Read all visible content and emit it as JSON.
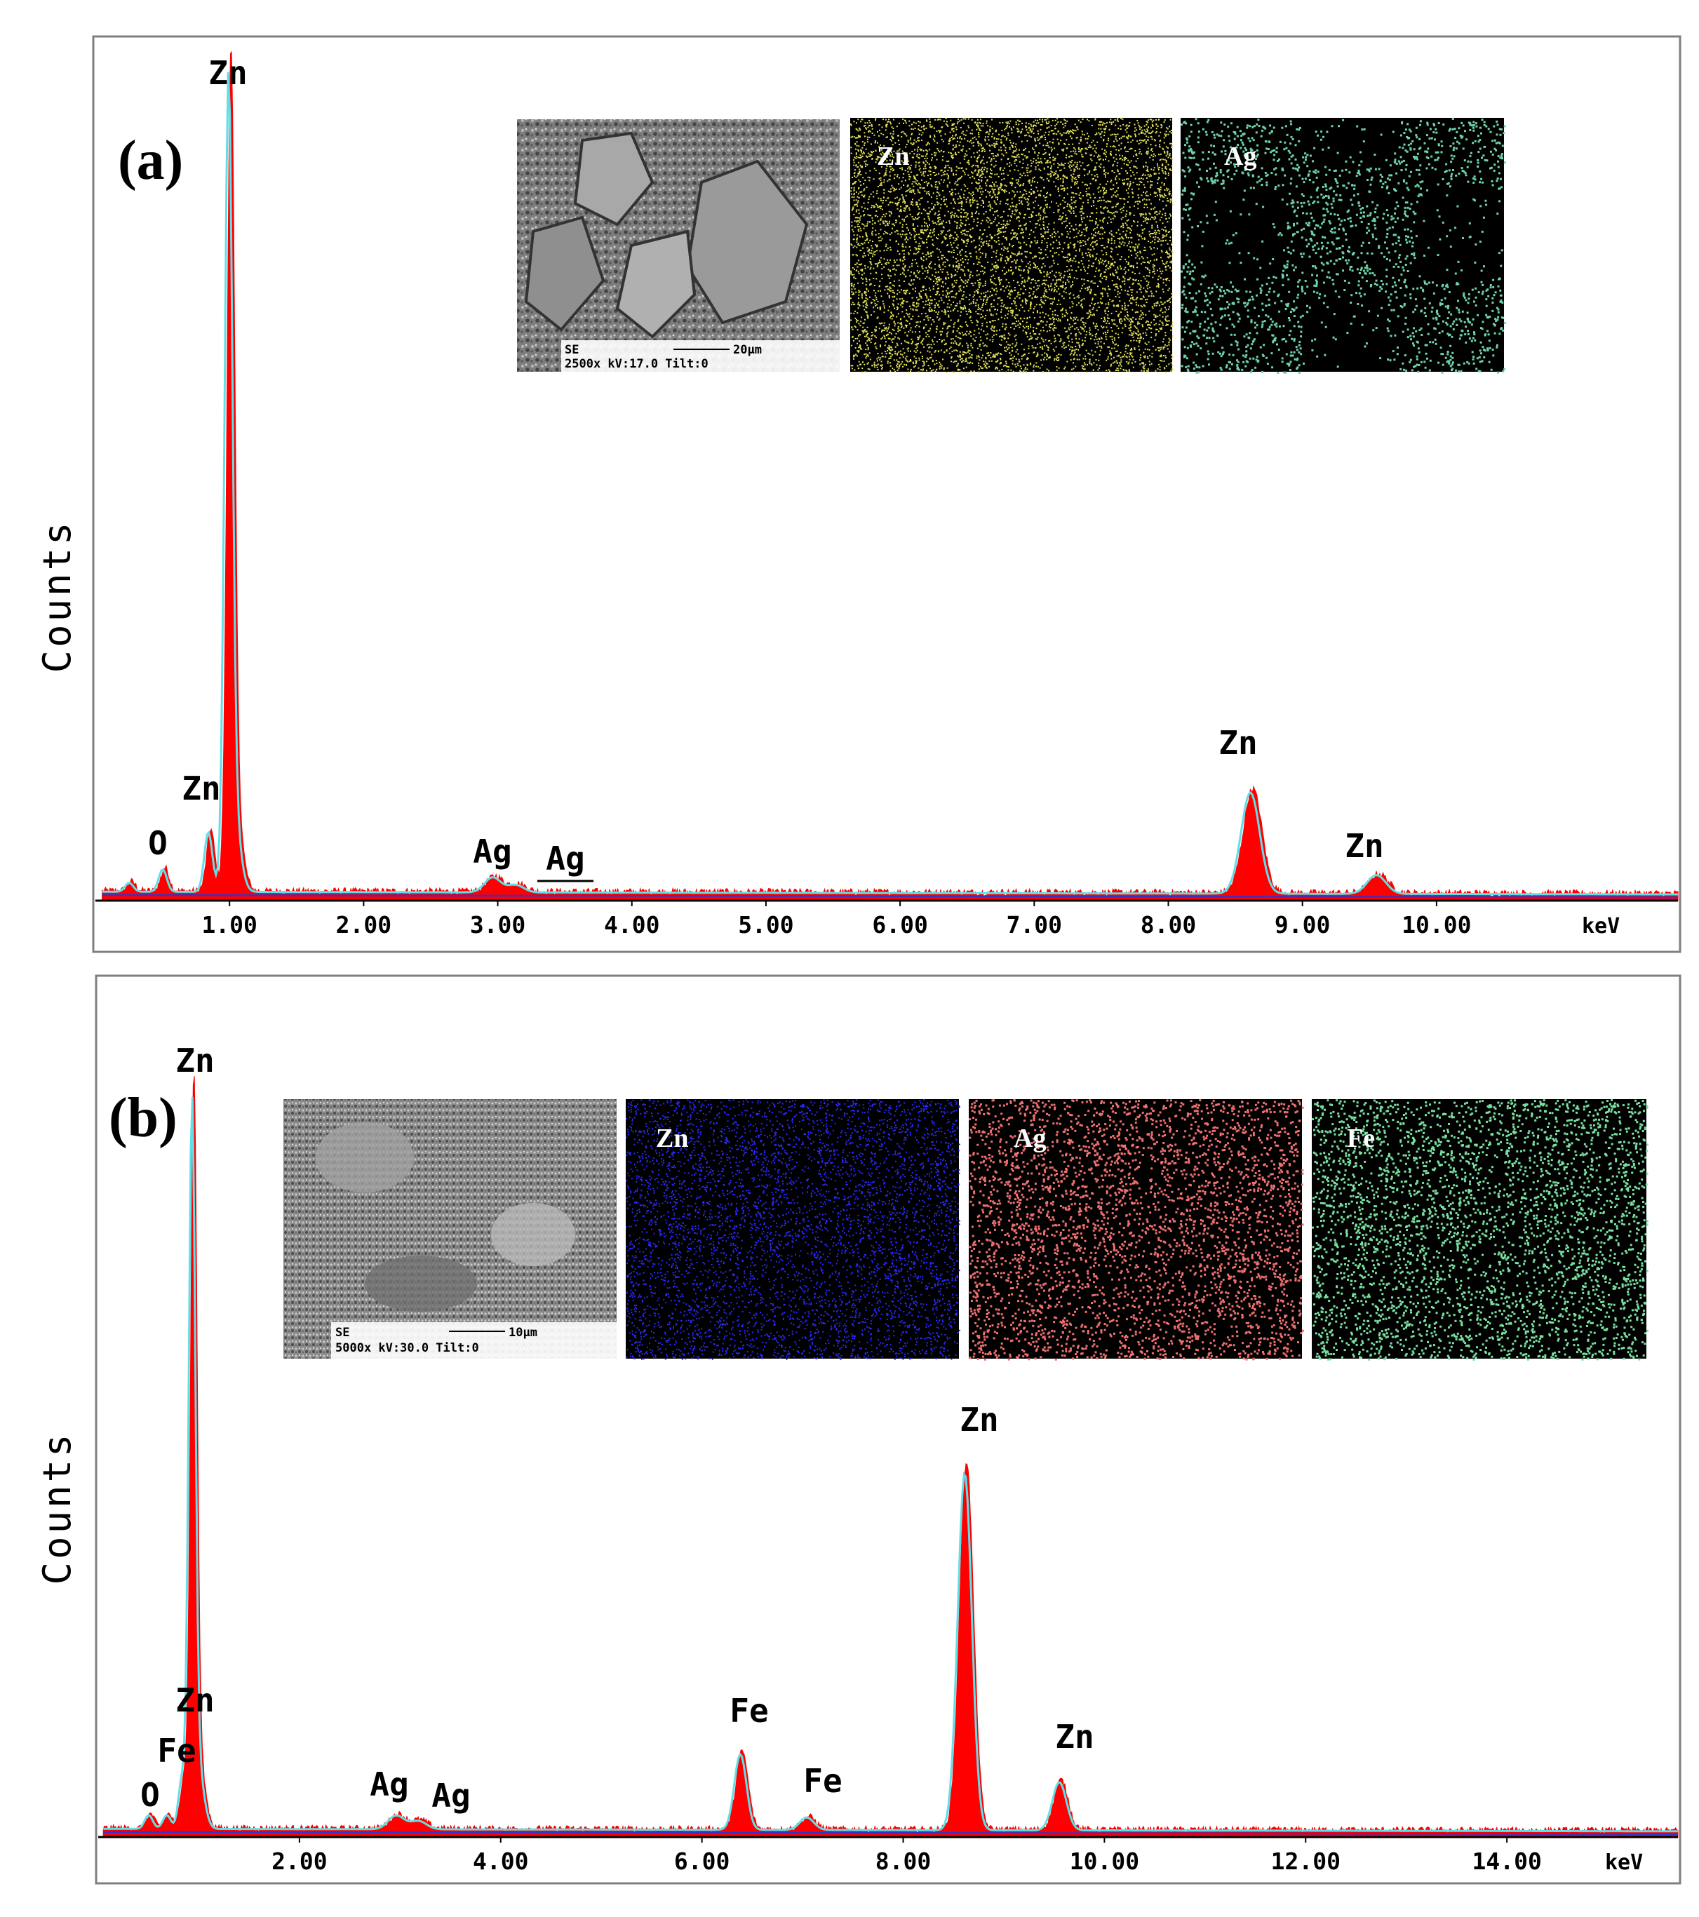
{
  "chart_data": [
    {
      "type": "area",
      "panel_label": "(a)",
      "ylabel": "Counts",
      "x_unit_label": "keV",
      "xlim": [
        0,
        11.8
      ],
      "x_tick_labels": [
        "1.00",
        "2.00",
        "3.00",
        "4.00",
        "5.00",
        "6.00",
        "7.00",
        "8.00",
        "9.00",
        "10.00"
      ],
      "x_ticks": [
        1,
        2,
        3,
        4,
        5,
        6,
        7,
        8,
        9,
        10
      ],
      "ylim": [
        0,
        1.06
      ],
      "baseline": 0.012,
      "spectrum_peaks": [
        {
          "energy": 0.27,
          "intensity": 0.012,
          "width": 0.03
        },
        {
          "energy": 0.52,
          "intensity": 0.03,
          "width": 0.03
        },
        {
          "energy": 0.86,
          "intensity": 0.08,
          "width": 0.03
        },
        {
          "energy": 1.01,
          "intensity": 1.0,
          "width": 0.028
        },
        {
          "energy": 1.04,
          "intensity": 0.12,
          "width": 0.05
        },
        {
          "energy": 2.98,
          "intensity": 0.02,
          "width": 0.06
        },
        {
          "energy": 3.15,
          "intensity": 0.01,
          "width": 0.06
        },
        {
          "energy": 8.63,
          "intensity": 0.135,
          "width": 0.07
        },
        {
          "energy": 9.57,
          "intensity": 0.025,
          "width": 0.07
        }
      ],
      "peak_labels": [
        {
          "text": "Zn",
          "energy": 1.01
        },
        {
          "text": "Zn",
          "energy": 0.88
        },
        {
          "text": "O",
          "energy": 0.52
        },
        {
          "text": "Ag",
          "energy": 3.0
        },
        {
          "text": "Ag",
          "energy": 3.55
        },
        {
          "text": "Zn",
          "energy": 8.65
        },
        {
          "text": "Zn",
          "energy": 9.57
        }
      ],
      "inset": {
        "sem_text_line1": "SE",
        "sem_scale": "20μm",
        "sem_text_line2": "2500x   kV:17.0  Tilt:0",
        "maps": [
          {
            "label": "Zn",
            "color": "#e3e15a"
          },
          {
            "label": "Ag",
            "color": "#6fd3a8"
          }
        ]
      }
    },
    {
      "type": "area",
      "panel_label": "(b)",
      "ylabel": "Counts",
      "x_unit_label": "keV",
      "xlim": [
        0,
        15.7
      ],
      "x_tick_labels": [
        "2.00",
        "4.00",
        "6.00",
        "8.00",
        "10.00",
        "12.00",
        "14.00"
      ],
      "x_ticks": [
        2,
        4,
        6,
        8,
        10,
        12,
        14
      ],
      "ylim": [
        0,
        1.06
      ],
      "baseline": 0.012,
      "spectrum_peaks": [
        {
          "energy": 0.52,
          "intensity": 0.02,
          "width": 0.04
        },
        {
          "energy": 0.7,
          "intensity": 0.02,
          "width": 0.04
        },
        {
          "energy": 0.85,
          "intensity": 0.07,
          "width": 0.035
        },
        {
          "energy": 0.95,
          "intensity": 1.0,
          "width": 0.032
        },
        {
          "energy": 1.0,
          "intensity": 0.1,
          "width": 0.06
        },
        {
          "energy": 2.98,
          "intensity": 0.02,
          "width": 0.08
        },
        {
          "energy": 3.2,
          "intensity": 0.012,
          "width": 0.08
        },
        {
          "energy": 6.4,
          "intensity": 0.11,
          "width": 0.06
        },
        {
          "energy": 7.06,
          "intensity": 0.018,
          "width": 0.07
        },
        {
          "energy": 8.63,
          "intensity": 0.52,
          "width": 0.07
        },
        {
          "energy": 9.57,
          "intensity": 0.07,
          "width": 0.07
        }
      ],
      "peak_labels": [
        {
          "text": "Zn",
          "energy": 0.95
        },
        {
          "text": "Zn",
          "energy": 0.92
        },
        {
          "text": "Fe",
          "energy": 0.7
        },
        {
          "text": "O",
          "energy": 0.5
        },
        {
          "text": "Ag",
          "energy": 2.9
        },
        {
          "text": "Ag",
          "energy": 3.45
        },
        {
          "text": "Fe",
          "energy": 6.4
        },
        {
          "text": "Fe",
          "energy": 7.06
        },
        {
          "text": "Zn",
          "energy": 8.63
        },
        {
          "text": "Zn",
          "energy": 9.57
        }
      ],
      "inset": {
        "sem_text_line1": "SE",
        "sem_scale": "10μm",
        "sem_text_line2": "5000x   kV:30.0  Tilt:0",
        "maps": [
          {
            "label": "Zn",
            "color": "#2b2bff"
          },
          {
            "label": "Ag",
            "color": "#f07070"
          },
          {
            "label": "Fe",
            "color": "#79e0a0"
          }
        ]
      }
    }
  ],
  "colors": {
    "fill": "#ff0000",
    "fit_line": "#5fe0e8",
    "baseline_line": "#3333cc",
    "frame": "#808080"
  }
}
